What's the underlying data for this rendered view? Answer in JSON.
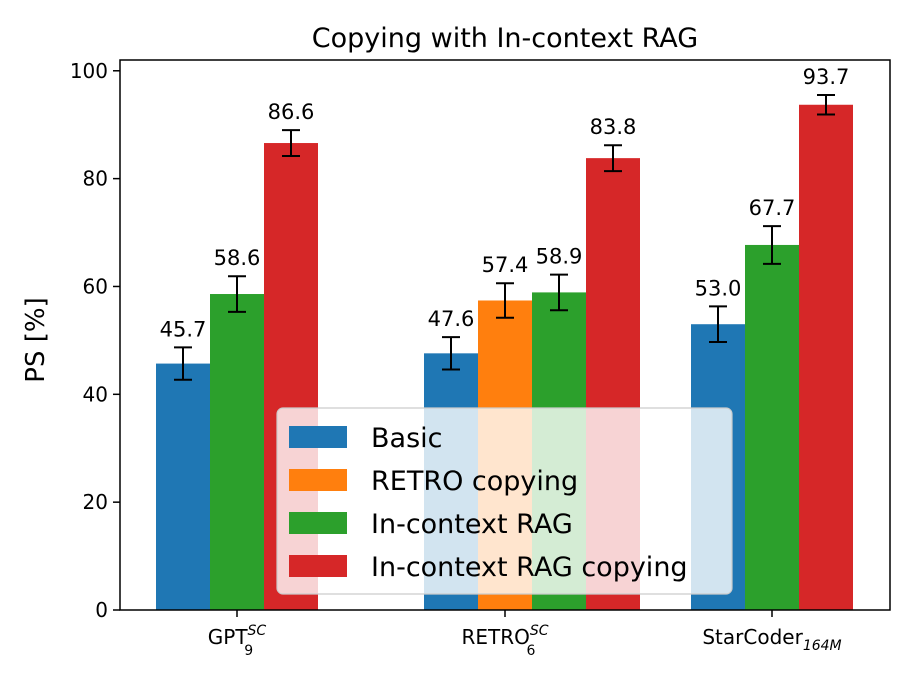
{
  "chart_data": {
    "type": "bar",
    "title": "Copying with In-context RAG",
    "xlabel": "",
    "ylabel": "PS [%]",
    "ylim": [
      0,
      102
    ],
    "yticks": [
      0,
      20,
      40,
      60,
      80,
      100
    ],
    "categories": [
      {
        "base": "GPT",
        "sup": "SC",
        "sub": "9"
      },
      {
        "base": "RETRO",
        "sup": "SC",
        "sub": "6"
      },
      {
        "base": "StarCoder",
        "sup": "",
        "sub": "164M"
      }
    ],
    "series": [
      {
        "name": "Basic",
        "color": "#1f77b4",
        "values": [
          45.7,
          47.6,
          53.0
        ],
        "labels": [
          "45.7",
          "47.6",
          "53.0"
        ],
        "errors": [
          3.0,
          3.0,
          3.3
        ]
      },
      {
        "name": "RETRO copying",
        "color": "#ff7f0e",
        "values": [
          null,
          57.4,
          null
        ],
        "labels": [
          null,
          "57.4",
          null
        ],
        "errors": [
          null,
          3.2,
          null
        ]
      },
      {
        "name": "In-context RAG",
        "color": "#2ca02c",
        "values": [
          58.6,
          58.9,
          67.7
        ],
        "labels": [
          "58.6",
          "58.9",
          "67.7"
        ],
        "errors": [
          3.3,
          3.3,
          3.5
        ]
      },
      {
        "name": "In-context RAG copying",
        "color": "#d62728",
        "values": [
          86.6,
          83.8,
          93.7
        ],
        "labels": [
          "86.6",
          "83.8",
          "93.7"
        ],
        "errors": [
          2.4,
          2.4,
          1.8
        ]
      }
    ],
    "legend_position": "lower-right",
    "grid": false
  }
}
